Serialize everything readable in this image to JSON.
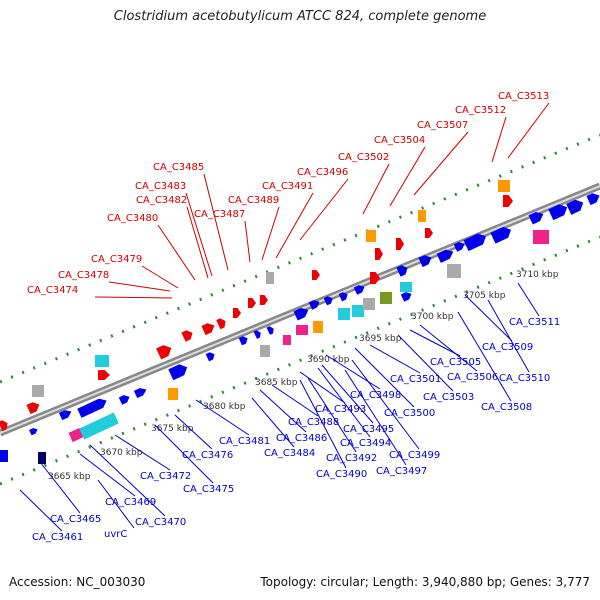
{
  "title": "Clostridium acetobutylicum ATCC 824, complete genome",
  "footer": {
    "accession": "Accession: NC_003030",
    "summary": "Topology: circular; Length: 3,940,880 bp; Genes: 3,777"
  },
  "colors": {
    "top_strand_label": "#cc0000",
    "bottom_strand_label": "#0000cc",
    "backbone": "#888888",
    "tick_green": "#2e8b2e",
    "gene_red": "#ee0000",
    "gene_blue": "#0000ee",
    "gene_orange": "#ff9900",
    "gene_cyan": "#22ccdd",
    "gene_magenta": "#ee2288",
    "gene_gray": "#aaaaaa",
    "gene_olive": "#779922",
    "gene_navy": "#000066"
  },
  "scale_labels": [
    "3665 kbp",
    "3670 kbp",
    "3675 kbp",
    "3680 kbp",
    "3685 kbp",
    "3690 kbp",
    "3695 kbp",
    "3700 kbp",
    "3705 kbp",
    "3710 kbp"
  ],
  "top_labels": [
    "CA_C3474",
    "CA_C3478",
    "CA_C3479",
    "CA_C3480",
    "CA_C3482",
    "CA_C3483",
    "CA_C3485",
    "CA_C3487",
    "CA_C3489",
    "CA_C3491",
    "CA_C3496",
    "CA_C3502",
    "CA_C3504",
    "CA_C3507",
    "CA_C3512",
    "CA_C3513"
  ],
  "bottom_labels": [
    "CA_C3461",
    "uvrC",
    "CA_C3465",
    "CA_C3469",
    "CA_C3470",
    "CA_C3472",
    "CA_C3475",
    "CA_C3476",
    "CA_C3481",
    "CA_C3484",
    "CA_C3486",
    "CA_C3488",
    "CA_C3490",
    "CA_C3492",
    "CA_C3493",
    "CA_C3494",
    "CA_C3495",
    "CA_C3497",
    "CA_C3498",
    "CA_C3499",
    "CA_C3500",
    "CA_C3501",
    "CA_C3503",
    "CA_C3505",
    "CA_C3506",
    "CA_C3508",
    "CA_C3509",
    "CA_C3510",
    "CA_C3511"
  ]
}
